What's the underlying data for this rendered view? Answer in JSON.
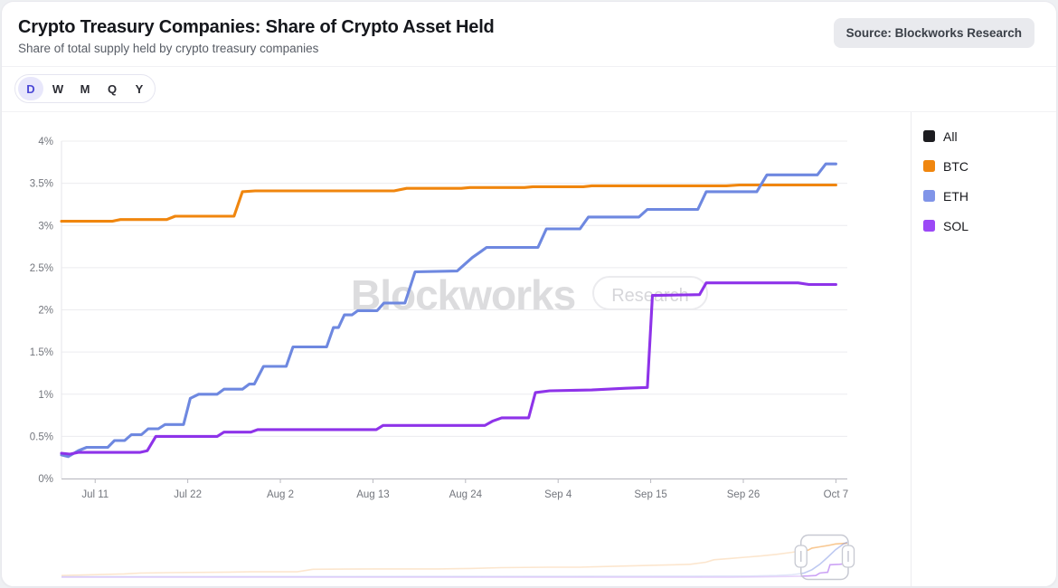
{
  "header": {
    "title": "Crypto Treasury Companies: Share of Crypto Asset Held",
    "subtitle": "Share of total supply held by crypto treasury companies",
    "source_badge": "Source: Blockworks Research"
  },
  "toolbar": {
    "periods": [
      {
        "label": "D",
        "selected": true
      },
      {
        "label": "W",
        "selected": false
      },
      {
        "label": "M",
        "selected": false
      },
      {
        "label": "Q",
        "selected": false
      },
      {
        "label": "Y",
        "selected": false
      }
    ]
  },
  "watermark": {
    "brand": "Blockworks",
    "badge": "Research"
  },
  "legend": {
    "items": [
      {
        "label": "All",
        "color": "#1c1c20"
      },
      {
        "label": "BTC",
        "color": "#f0860e"
      },
      {
        "label": "ETH",
        "color": "#8094e8"
      },
      {
        "label": "SOL",
        "color": "#9c49f6"
      }
    ]
  },
  "chart_data": {
    "type": "line",
    "title": "Crypto Treasury Companies: Share of Crypto Asset Held",
    "ylim": [
      0,
      4
    ],
    "grid": true,
    "legend_position": "right",
    "y_ticks": [
      {
        "value": 0,
        "label": "0%"
      },
      {
        "value": 0.5,
        "label": "0.5%"
      },
      {
        "value": 1,
        "label": "1%"
      },
      {
        "value": 1.5,
        "label": "1.5%"
      },
      {
        "value": 2,
        "label": "2%"
      },
      {
        "value": 2.5,
        "label": "2.5%"
      },
      {
        "value": 3,
        "label": "3%"
      },
      {
        "value": 3.5,
        "label": "3.5%"
      },
      {
        "value": 4,
        "label": "4%"
      }
    ],
    "x_ticks": [
      {
        "day": 4,
        "label": "Jul 11"
      },
      {
        "day": 15,
        "label": "Jul 22"
      },
      {
        "day": 26,
        "label": "Aug 2"
      },
      {
        "day": 37,
        "label": "Aug 13"
      },
      {
        "day": 48,
        "label": "Aug 24"
      },
      {
        "day": 59,
        "label": "Sep 4"
      },
      {
        "day": 70,
        "label": "Sep 15"
      },
      {
        "day": 81,
        "label": "Sep 26"
      },
      {
        "day": 92,
        "label": "Oct 7"
      }
    ],
    "series": [
      {
        "name": "BTC",
        "color": "#f0860e",
        "points": [
          [
            0,
            3.05
          ],
          [
            6,
            3.05
          ],
          [
            7,
            3.07
          ],
          [
            12.5,
            3.07
          ],
          [
            13.5,
            3.11
          ],
          [
            20.5,
            3.11
          ],
          [
            21.5,
            3.4
          ],
          [
            23,
            3.41
          ],
          [
            39.5,
            3.41
          ],
          [
            41,
            3.44
          ],
          [
            47.5,
            3.44
          ],
          [
            48.5,
            3.45
          ],
          [
            55,
            3.45
          ],
          [
            56,
            3.46
          ],
          [
            62,
            3.46
          ],
          [
            63,
            3.47
          ],
          [
            79,
            3.47
          ],
          [
            80.5,
            3.48
          ],
          [
            92,
            3.48
          ]
        ]
      },
      {
        "name": "ETH",
        "color": "#6e88e0",
        "points": [
          [
            0,
            0.28
          ],
          [
            0.8,
            0.26
          ],
          [
            2,
            0.33
          ],
          [
            3,
            0.37
          ],
          [
            5.5,
            0.37
          ],
          [
            6.3,
            0.45
          ],
          [
            7.5,
            0.45
          ],
          [
            8.3,
            0.52
          ],
          [
            9.5,
            0.52
          ],
          [
            10.3,
            0.59
          ],
          [
            11.5,
            0.59
          ],
          [
            12.3,
            0.64
          ],
          [
            14.5,
            0.64
          ],
          [
            15.3,
            0.95
          ],
          [
            16.3,
            1.0
          ],
          [
            18.5,
            1.0
          ],
          [
            19.3,
            1.06
          ],
          [
            21.5,
            1.06
          ],
          [
            22.3,
            1.12
          ],
          [
            22.9,
            1.12
          ],
          [
            24,
            1.33
          ],
          [
            26.7,
            1.33
          ],
          [
            27.5,
            1.56
          ],
          [
            31.5,
            1.56
          ],
          [
            32.3,
            1.79
          ],
          [
            32.9,
            1.79
          ],
          [
            33.6,
            1.94
          ],
          [
            34.5,
            1.94
          ],
          [
            35.2,
            1.99
          ],
          [
            37.5,
            1.99
          ],
          [
            38.3,
            2.08
          ],
          [
            40.8,
            2.08
          ],
          [
            42,
            2.45
          ],
          [
            47,
            2.46
          ],
          [
            48.8,
            2.62
          ],
          [
            49.8,
            2.69
          ],
          [
            50.5,
            2.74
          ],
          [
            56.6,
            2.74
          ],
          [
            57.6,
            2.96
          ],
          [
            61.6,
            2.96
          ],
          [
            62.6,
            3.1
          ],
          [
            68.6,
            3.1
          ],
          [
            69.6,
            3.19
          ],
          [
            75.6,
            3.19
          ],
          [
            76.6,
            3.4
          ],
          [
            82.6,
            3.4
          ],
          [
            83.8,
            3.6
          ],
          [
            89.8,
            3.6
          ],
          [
            90.8,
            3.73
          ],
          [
            92,
            3.73
          ]
        ]
      },
      {
        "name": "SOL",
        "color": "#8e33e9",
        "points": [
          [
            0,
            0.3
          ],
          [
            1,
            0.29
          ],
          [
            2,
            0.31
          ],
          [
            9.3,
            0.31
          ],
          [
            10.2,
            0.33
          ],
          [
            11.2,
            0.5
          ],
          [
            18.5,
            0.5
          ],
          [
            19.3,
            0.55
          ],
          [
            22.5,
            0.55
          ],
          [
            23.3,
            0.58
          ],
          [
            37.4,
            0.58
          ],
          [
            38.2,
            0.63
          ],
          [
            50.3,
            0.63
          ],
          [
            51.2,
            0.68
          ],
          [
            52.3,
            0.72
          ],
          [
            55.5,
            0.72
          ],
          [
            56.3,
            1.02
          ],
          [
            58,
            1.04
          ],
          [
            63,
            1.05
          ],
          [
            67,
            1.07
          ],
          [
            69.6,
            1.08
          ],
          [
            70.2,
            2.17
          ],
          [
            75.8,
            2.18
          ],
          [
            76.6,
            2.32
          ],
          [
            87.5,
            2.32
          ],
          [
            88.8,
            2.3
          ],
          [
            92,
            2.3
          ]
        ]
      }
    ]
  },
  "navigator": {
    "window": {
      "start": 0.941,
      "end": 1.0
    },
    "series": [
      {
        "name": "BTC",
        "color": "#f0860e",
        "points": [
          [
            0,
            0.06
          ],
          [
            0.04,
            0.08
          ],
          [
            0.08,
            0.1
          ],
          [
            0.1,
            0.12
          ],
          [
            0.14,
            0.13
          ],
          [
            0.2,
            0.14
          ],
          [
            0.24,
            0.15
          ],
          [
            0.3,
            0.15
          ],
          [
            0.32,
            0.21
          ],
          [
            0.4,
            0.22
          ],
          [
            0.48,
            0.22
          ],
          [
            0.52,
            0.23
          ],
          [
            0.56,
            0.25
          ],
          [
            0.62,
            0.26
          ],
          [
            0.66,
            0.26
          ],
          [
            0.7,
            0.28
          ],
          [
            0.74,
            0.3
          ],
          [
            0.78,
            0.32
          ],
          [
            0.8,
            0.33
          ],
          [
            0.82,
            0.38
          ],
          [
            0.83,
            0.44
          ],
          [
            0.85,
            0.47
          ],
          [
            0.87,
            0.5
          ],
          [
            0.89,
            0.53
          ],
          [
            0.91,
            0.57
          ],
          [
            0.93,
            0.62
          ],
          [
            0.94,
            0.65
          ],
          [
            0.95,
            0.67
          ],
          [
            0.955,
            0.72
          ],
          [
            0.965,
            0.75
          ],
          [
            0.975,
            0.78
          ],
          [
            0.985,
            0.82
          ],
          [
            1,
            0.84
          ]
        ]
      },
      {
        "name": "ETH",
        "color": "#6e88e0",
        "points": [
          [
            0,
            0.035
          ],
          [
            0.5,
            0.04
          ],
          [
            0.8,
            0.045
          ],
          [
            0.88,
            0.05
          ],
          [
            0.91,
            0.06
          ],
          [
            0.93,
            0.08
          ],
          [
            0.945,
            0.12
          ],
          [
            0.955,
            0.2
          ],
          [
            0.965,
            0.33
          ],
          [
            0.975,
            0.5
          ],
          [
            0.985,
            0.68
          ],
          [
            0.995,
            0.82
          ],
          [
            1,
            0.86
          ]
        ]
      },
      {
        "name": "SOL",
        "color": "#8e33e9",
        "points": [
          [
            0,
            0.02
          ],
          [
            0.85,
            0.02
          ],
          [
            0.9,
            0.03
          ],
          [
            0.93,
            0.04
          ],
          [
            0.95,
            0.05
          ],
          [
            0.96,
            0.06
          ],
          [
            0.965,
            0.12
          ],
          [
            0.97,
            0.13
          ],
          [
            0.975,
            0.14
          ],
          [
            0.978,
            0.32
          ],
          [
            0.99,
            0.33
          ],
          [
            0.995,
            0.34
          ],
          [
            1,
            0.44
          ]
        ]
      }
    ]
  }
}
